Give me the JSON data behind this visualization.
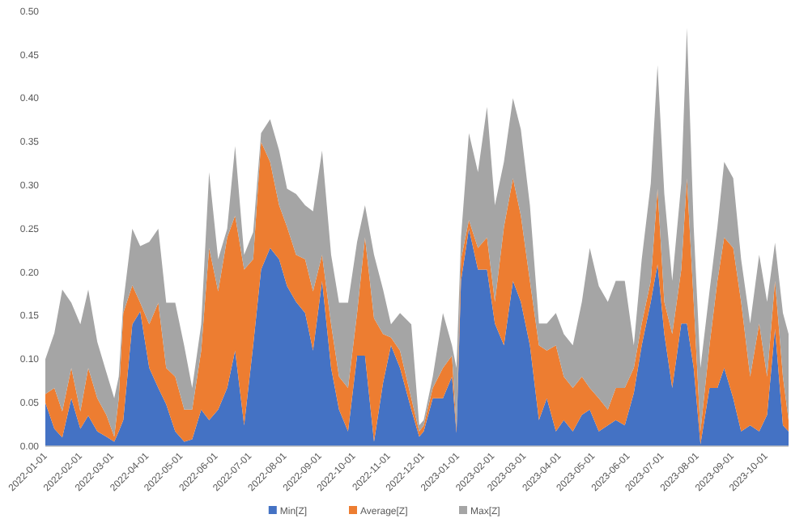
{
  "chart_data": {
    "type": "area",
    "stacked": true,
    "legend": "bottom",
    "grid": false,
    "x": [
      "2022-01-01",
      "2022-01-09",
      "2022-01-16",
      "2022-01-24",
      "2022-02-01",
      "2022-02-08",
      "2022-02-16",
      "2022-02-24",
      "2022-03-03",
      "2022-03-07",
      "2022-03-11",
      "2022-03-19",
      "2022-03-26",
      "2022-04-03",
      "2022-04-11",
      "2022-04-18",
      "2022-04-26",
      "2022-05-04",
      "2022-05-11",
      "2022-05-19",
      "2022-05-26",
      "2022-06-03",
      "2022-06-11",
      "2022-06-18",
      "2022-06-26",
      "2022-07-04",
      "2022-07-11",
      "2022-07-19",
      "2022-07-27",
      "2022-08-03",
      "2022-08-11",
      "2022-08-19",
      "2022-08-26",
      "2022-09-03",
      "2022-09-11",
      "2022-09-18",
      "2022-09-26",
      "2022-10-04",
      "2022-10-11",
      "2022-10-19",
      "2022-10-27",
      "2022-11-03",
      "2022-11-11",
      "2022-11-21",
      "2022-11-28",
      "2022-12-02",
      "2022-12-10",
      "2022-12-19",
      "2022-12-27",
      "2022-12-31",
      "2023-01-04",
      "2023-01-11",
      "2023-01-19",
      "2023-01-27",
      "2023-02-03",
      "2023-02-11",
      "2023-02-19",
      "2023-02-26",
      "2023-03-06",
      "2023-03-14",
      "2023-03-21",
      "2023-03-29",
      "2023-04-05",
      "2023-04-13",
      "2023-04-21",
      "2023-04-28",
      "2023-05-06",
      "2023-05-14",
      "2023-05-21",
      "2023-05-29",
      "2023-06-06",
      "2023-06-13",
      "2023-06-21",
      "2023-06-27",
      "2023-07-03",
      "2023-07-10",
      "2023-07-18",
      "2023-07-23",
      "2023-07-29",
      "2023-08-04",
      "2023-08-12",
      "2023-08-19",
      "2023-08-25",
      "2023-09-02",
      "2023-09-09",
      "2023-09-17",
      "2023-09-25",
      "2023-10-02",
      "2023-10-09",
      "2023-10-16",
      "2023-10-21"
    ],
    "series": [
      {
        "name": "Min[Z]",
        "color": "#4472c4",
        "values": [
          0.05,
          0.02,
          0.01,
          0.055,
          0.02,
          0.035,
          0.017,
          0.011,
          0.005,
          0.017,
          0.03,
          0.14,
          0.155,
          0.09,
          0.067,
          0.048,
          0.017,
          0.005,
          0.008,
          0.042,
          0.03,
          0.042,
          0.067,
          0.11,
          0.024,
          0.116,
          0.203,
          0.228,
          0.215,
          0.184,
          0.166,
          0.153,
          0.11,
          0.19,
          0.09,
          0.042,
          0.017,
          0.104,
          0.104,
          0.005,
          0.073,
          0.116,
          0.09,
          0.042,
          0.011,
          0.017,
          0.055,
          0.055,
          0.08,
          0.015,
          0.19,
          0.25,
          0.203,
          0.203,
          0.141,
          0.116,
          0.19,
          0.166,
          0.116,
          0.03,
          0.055,
          0.017,
          0.03,
          0.017,
          0.036,
          0.042,
          0.017,
          0.024,
          0.03,
          0.024,
          0.061,
          0.116,
          0.166,
          0.209,
          0.129,
          0.067,
          0.141,
          0.141,
          0.09,
          0.002,
          0.067,
          0.067,
          0.09,
          0.055,
          0.017,
          0.024,
          0.017,
          0.036,
          0.135,
          0.024,
          0.017
        ]
      },
      {
        "name": "Average[Z]",
        "color": "#ed7d31",
        "values": [
          0.01,
          0.047,
          0.03,
          0.035,
          0.02,
          0.055,
          0.038,
          0.025,
          0.006,
          0.038,
          0.123,
          0.045,
          0.01,
          0.05,
          0.098,
          0.042,
          0.063,
          0.037,
          0.034,
          0.068,
          0.198,
          0.136,
          0.173,
          0.155,
          0.179,
          0.099,
          0.147,
          0.099,
          0.062,
          0.068,
          0.054,
          0.062,
          0.068,
          0.03,
          0.05,
          0.038,
          0.05,
          0.049,
          0.136,
          0.142,
          0.056,
          0.009,
          0.02,
          0.013,
          0.006,
          0.007,
          0.012,
          0.035,
          0.024,
          0.005,
          0.025,
          0.01,
          0.025,
          0.037,
          0.025,
          0.136,
          0.118,
          0.099,
          0.074,
          0.086,
          0.055,
          0.099,
          0.05,
          0.05,
          0.044,
          0.025,
          0.038,
          0.018,
          0.037,
          0.043,
          0.029,
          0.025,
          0.024,
          0.087,
          0.037,
          0.062,
          0.062,
          0.167,
          0.076,
          0.015,
          0.049,
          0.123,
          0.15,
          0.173,
          0.149,
          0.056,
          0.124,
          0.044,
          0.055,
          0.056,
          0.013
        ]
      },
      {
        "name": "Max[Z]",
        "color": "#a5a5a5",
        "values": [
          0.04,
          0.063,
          0.14,
          0.075,
          0.1,
          0.09,
          0.065,
          0.049,
          0.044,
          0.025,
          0.012,
          0.065,
          0.065,
          0.095,
          0.085,
          0.075,
          0.085,
          0.073,
          0.025,
          0.03,
          0.087,
          0.037,
          0.01,
          0.08,
          0.017,
          0.031,
          0.01,
          0.049,
          0.063,
          0.044,
          0.07,
          0.062,
          0.092,
          0.12,
          0.08,
          0.085,
          0.098,
          0.082,
          0.037,
          0.073,
          0.051,
          0.015,
          0.043,
          0.085,
          0.007,
          0.006,
          0.013,
          0.063,
          0.012,
          0.07,
          0.025,
          0.1,
          0.087,
          0.15,
          0.111,
          0.075,
          0.092,
          0.099,
          0.087,
          0.025,
          0.031,
          0.037,
          0.049,
          0.049,
          0.086,
          0.161,
          0.129,
          0.124,
          0.123,
          0.123,
          0.026,
          0.074,
          0.112,
          0.142,
          0.124,
          0.061,
          0.099,
          0.173,
          0.086,
          0.073,
          0.062,
          0.062,
          0.087,
          0.08,
          0.049,
          0.061,
          0.079,
          0.086,
          0.044,
          0.073,
          0.099
        ]
      }
    ],
    "xlim": [
      "2022-01-01",
      "2023-10-21"
    ],
    "xticks": [
      "2022-01-01",
      "2022-02-01",
      "2022-03-01",
      "2022-04-01",
      "2022-05-01",
      "2022-06-01",
      "2022-07-01",
      "2022-08-01",
      "2022-09-01",
      "2022-10-01",
      "2022-11-01",
      "2022-12-01",
      "2023-01-01",
      "2023-02-01",
      "2023-03-01",
      "2023-04-01",
      "2023-05-01",
      "2023-06-01",
      "2023-07-01",
      "2023-08-01",
      "2023-09-01",
      "2023-10-01"
    ],
    "ylim": [
      0,
      0.5
    ],
    "yticks": [
      {
        "value": 0,
        "label": "0.00"
      },
      {
        "value": 0.05,
        "label": "0.05"
      },
      {
        "value": 0.1,
        "label": "0.10"
      },
      {
        "value": 0.15,
        "label": "0.15"
      },
      {
        "value": 0.2,
        "label": "0.20"
      },
      {
        "value": 0.25,
        "label": "0.25"
      },
      {
        "value": 0.3,
        "label": "0.30"
      },
      {
        "value": 0.35,
        "label": "0.35"
      },
      {
        "value": 0.4,
        "label": "0.40"
      },
      {
        "value": 0.45,
        "label": "0.45"
      },
      {
        "value": 0.5,
        "label": "0.50"
      }
    ]
  }
}
